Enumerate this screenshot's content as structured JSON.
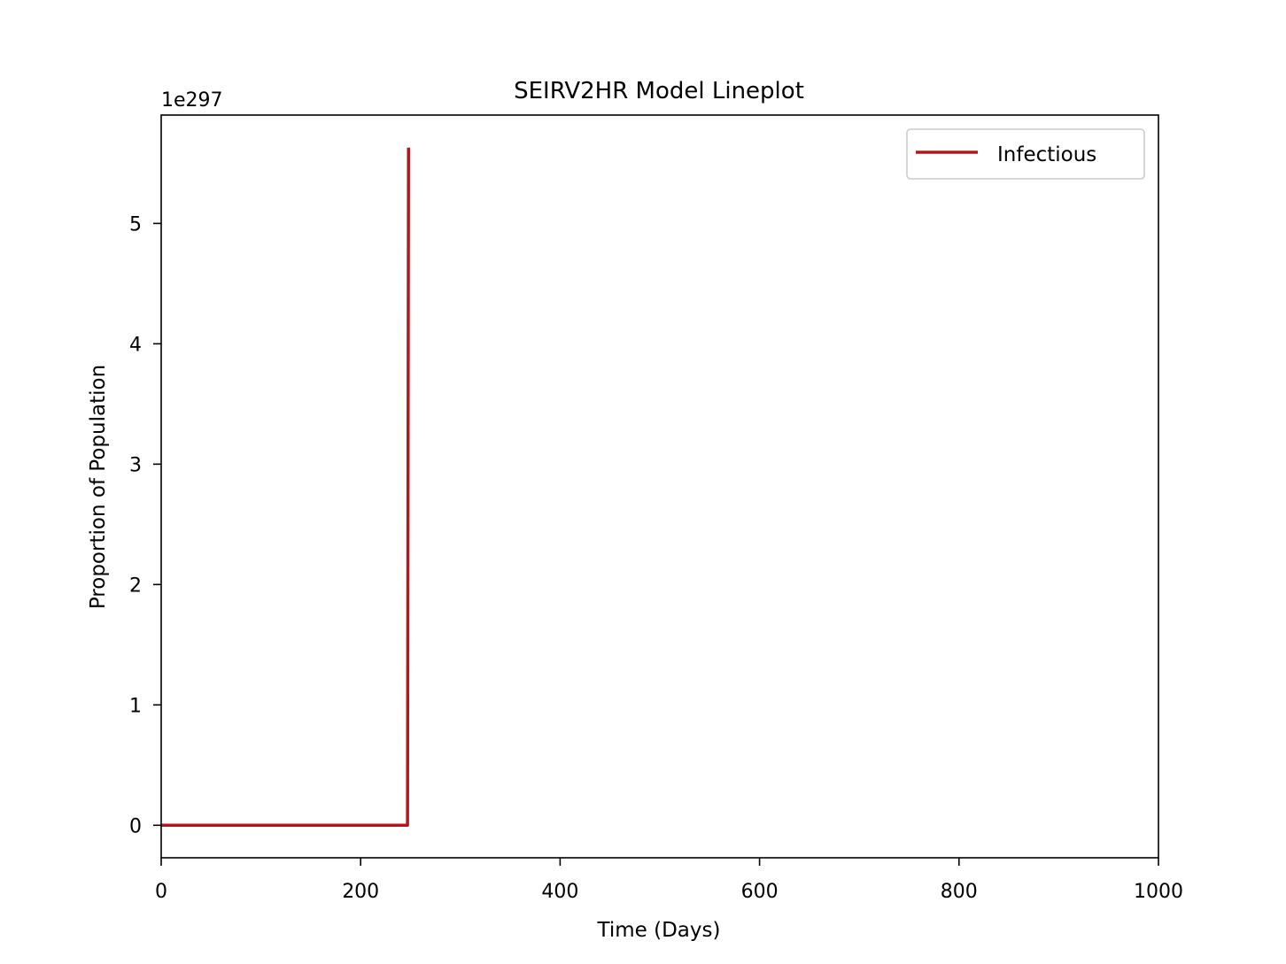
{
  "chart_data": {
    "type": "line",
    "title": "SEIRV2HR Model Lineplot",
    "xlabel": "Time (Days)",
    "ylabel": "Proportion of Population",
    "y_offset_label": "1e297",
    "xlim": [
      0,
      1000
    ],
    "ylim": [
      -0.27,
      5.9
    ],
    "x_ticks": [
      0,
      200,
      400,
      600,
      800,
      1000
    ],
    "x_tick_labels": [
      "0",
      "200",
      "400",
      "600",
      "800",
      "1000"
    ],
    "y_ticks": [
      0,
      1,
      2,
      3,
      4,
      5
    ],
    "y_tick_labels": [
      "0",
      "1",
      "2",
      "3",
      "4",
      "5"
    ],
    "grid": false,
    "legend_position": "top-right",
    "series": [
      {
        "name": "Infectious",
        "color": "#b2181b",
        "x": [
          0,
          100,
          200,
          246,
          247,
          248
        ],
        "y": [
          0,
          0,
          0,
          0,
          0,
          5.63
        ]
      }
    ]
  }
}
